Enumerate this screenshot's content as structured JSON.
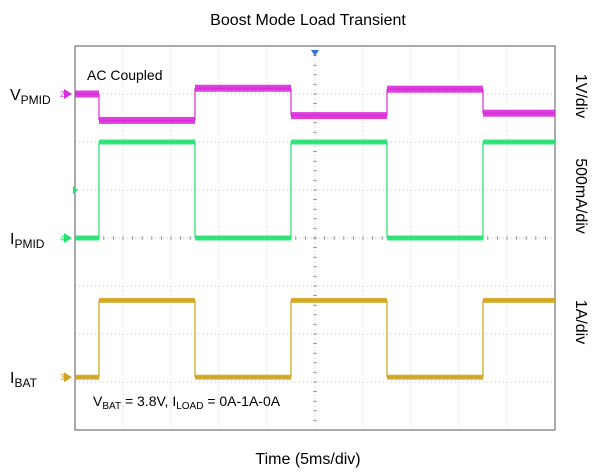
{
  "chart_data": {
    "type": "line",
    "title": "Boost Mode Load Transient",
    "xlabel": "Time (5ms/div)",
    "annotation_coupling": "AC Coupled",
    "annotation_conditions": {
      "vbat_prefix": "V",
      "vbat_sub": "BAT",
      "vbat_value": " = 3.8V, ",
      "iload_prefix": "I",
      "iload_sub": "LOAD",
      "iload_value": " = 0A-1A-0A"
    },
    "x_divisions": 10,
    "y_divisions": 8,
    "x_edges_ms": [
      0,
      2.5,
      12.5,
      22.5,
      32.5,
      42.5,
      50
    ],
    "load_current_A": [
      0,
      1,
      0,
      1,
      0,
      1
    ],
    "channels": [
      {
        "id": "vpmid",
        "label_main": "V",
        "label_sub": "PMID",
        "marker": "2",
        "scale": "1V/div",
        "color": "#d92bd9",
        "ground_div": 3.0,
        "levels_div": [
          3.0,
          2.45,
          3.12,
          2.55,
          3.1,
          2.6
        ]
      },
      {
        "id": "ipmid",
        "label_main": "I",
        "label_sub": "PMID",
        "marker": "4",
        "scale": "500mA/div",
        "color": "#22e36f",
        "ground_div": 0.0,
        "levels_div": [
          0.0,
          2.0,
          0.0,
          2.0,
          0.0,
          2.0
        ]
      },
      {
        "id": "ibat",
        "label_main": "I",
        "label_sub": "BAT",
        "marker": "3",
        "scale": "1A/div",
        "color": "#d1a420",
        "ground_div": -2.9,
        "levels_div": [
          -2.9,
          -1.3,
          -2.9,
          -1.3,
          -2.9,
          -1.3
        ]
      }
    ]
  }
}
